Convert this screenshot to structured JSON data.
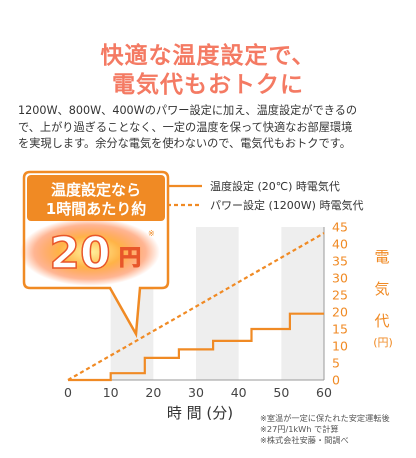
{
  "headline": {
    "line1": "快適な温度設定で、",
    "line2": "電気代もおトクに"
  },
  "description": [
    "1200W、800W、400Wのパワー設定に加え、温度設定ができるの",
    "で、上がり過ぎることなく、一定の温度を保って快適なお部屋環境",
    "を実現します。余分な電気を使わないので、電気代もおトクです。"
  ],
  "bubble": {
    "line1": "温度設定なら",
    "line2": "1時間あたり約",
    "amount": "20",
    "unit": "円",
    "asterisk": "※"
  },
  "colors": {
    "accent": "#f47a63",
    "orange": "#f08a24",
    "stripe": "#eeeeee"
  },
  "notes": [
    "※室温が一定に保たれた安定運転後",
    "※27円/1kWh で計算",
    "※株式会社安藤・間調べ"
  ],
  "chart_data": {
    "type": "line",
    "xlabel": "時 間 (分)",
    "ylabel_chars": [
      "電",
      "気",
      "代"
    ],
    "ylabel_unit": "(円)",
    "x_ticks": [
      0,
      10,
      20,
      30,
      40,
      50,
      60
    ],
    "y_ticks": [
      0,
      5,
      10,
      15,
      20,
      25,
      30,
      35,
      40,
      45
    ],
    "xlim": [
      0,
      60
    ],
    "ylim": [
      0,
      45
    ],
    "legend_position": "top",
    "series": [
      {
        "name": "温度設定 (20℃) 時電気代",
        "style": "solid",
        "color": "#f08a24",
        "x": [
          0,
          10,
          10,
          18,
          18,
          26,
          26,
          34,
          34,
          43,
          43,
          52,
          52,
          60
        ],
        "y": [
          0,
          0,
          2,
          2,
          6.5,
          6.5,
          9,
          9,
          11.5,
          11.5,
          15,
          15,
          19.5,
          19.5
        ]
      },
      {
        "name": "パワー設定 (1200W) 時電気代",
        "style": "dashed",
        "color": "#f08a24",
        "x": [
          0,
          60
        ],
        "y": [
          0,
          43.2
        ]
      }
    ]
  }
}
